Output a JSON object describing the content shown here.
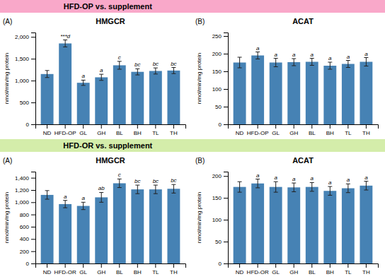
{
  "chart_data": [
    {
      "type": "bar",
      "title": "HMGCR",
      "subtitle": "(A)",
      "ylabel": "nmol/min/mg protein",
      "categories": [
        "ND",
        "HFD-OP",
        "GL",
        "GH",
        "BL",
        "BH",
        "TL",
        "TH"
      ],
      "values": [
        1150,
        1850,
        950,
        1075,
        1350,
        1200,
        1220,
        1230
      ],
      "errors": [
        80,
        80,
        60,
        70,
        90,
        70,
        70,
        70
      ],
      "ylim": [
        0,
        2100
      ],
      "yticks": [
        0,
        500,
        {
          "value": 1000,
          "label": "1,000"
        },
        {
          "value": 1500,
          "label": "1,500"
        },
        {
          "value": 2000,
          "label": "2,000"
        }
      ],
      "grid": false,
      "annotations": [
        {
          "text": "HFD-OP vs. supplement",
          "color": "#F9A8C9"
        },
        {
          "text": "***d",
          "category": "HFD-OP"
        },
        {
          "text": "a",
          "category": "GL"
        },
        {
          "text": "a",
          "category": "GH"
        },
        {
          "text": "c",
          "category": "BL"
        },
        {
          "text": "bc",
          "category": "BH"
        },
        {
          "text": "bc",
          "category": "TL"
        },
        {
          "text": "bc",
          "category": "TH"
        }
      ]
    },
    {
      "type": "bar",
      "title": "ACAT",
      "subtitle": "(B)",
      "ylabel": "nmol/min/mg protein",
      "categories": [
        "ND",
        "HFD-OP",
        "GL",
        "GH",
        "BL",
        "BH",
        "TL",
        "TH"
      ],
      "values": [
        175,
        195,
        175,
        176,
        177,
        166,
        171,
        177
      ],
      "errors": [
        15,
        10,
        12,
        10,
        10,
        10,
        10,
        12
      ],
      "ylim": [
        0,
        260
      ],
      "yticks": [
        0,
        50,
        100,
        150,
        200,
        250
      ],
      "grid": false,
      "annotations": [
        {
          "text": "a",
          "category": "HFD-OP"
        },
        {
          "text": "a",
          "category": "GL"
        },
        {
          "text": "a",
          "category": "GH"
        },
        {
          "text": "a",
          "category": "BL"
        },
        {
          "text": "a",
          "category": "BH"
        },
        {
          "text": "a",
          "category": "TL"
        },
        {
          "text": "a",
          "category": "TH"
        }
      ]
    },
    {
      "type": "bar",
      "title": "HMGCR",
      "subtitle": "(A)",
      "ylabel": "nmol/min/mg protein",
      "categories": [
        "ND",
        "HFD-OR",
        "GL",
        "GH",
        "BL",
        "BH",
        "TL",
        "TH"
      ],
      "values": [
        1120,
        970,
        940,
        1080,
        1310,
        1210,
        1210,
        1220
      ],
      "errors": [
        70,
        60,
        60,
        80,
        70,
        70,
        70,
        70
      ],
      "ylim": [
        0,
        1500
      ],
      "yticks": [
        0,
        200,
        400,
        600,
        800,
        {
          "value": 1000,
          "label": "1,000"
        },
        {
          "value": 1200,
          "label": "1,200"
        },
        {
          "value": 1400,
          "label": "1,400"
        }
      ],
      "grid": false,
      "annotations": [
        {
          "text": "HFD-OR vs. supplement",
          "color": "#d4edaa"
        },
        {
          "text": "a",
          "category": "HFD-OR"
        },
        {
          "text": "a",
          "category": "GL"
        },
        {
          "text": "ab",
          "category": "GH"
        },
        {
          "text": "c",
          "category": "BL"
        },
        {
          "text": "bc",
          "category": "BH"
        },
        {
          "text": "bc",
          "category": "TL"
        },
        {
          "text": "bc",
          "category": "TH"
        }
      ]
    },
    {
      "type": "bar",
      "title": "ACAT",
      "subtitle": "(B)",
      "ylabel": "nmol/min/mg protein",
      "categories": [
        "ND",
        "HFD-OR",
        "GL",
        "GH",
        "BL",
        "BH",
        "TL",
        "TH"
      ],
      "values": [
        175,
        183,
        175,
        174,
        175,
        166,
        172,
        178
      ],
      "errors": [
        12,
        10,
        12,
        10,
        10,
        10,
        10,
        10
      ],
      "ylim": [
        0,
        210
      ],
      "yticks": [
        0,
        50,
        100,
        150,
        200
      ],
      "grid": false,
      "annotations": [
        {
          "text": "a",
          "category": "HFD-OR"
        },
        {
          "text": "a",
          "category": "GL"
        },
        {
          "text": "a",
          "category": "GH"
        },
        {
          "text": "a",
          "category": "BL"
        },
        {
          "text": "a",
          "category": "BH"
        },
        {
          "text": "a",
          "category": "TL"
        },
        {
          "text": "a",
          "category": "TH"
        }
      ]
    }
  ]
}
